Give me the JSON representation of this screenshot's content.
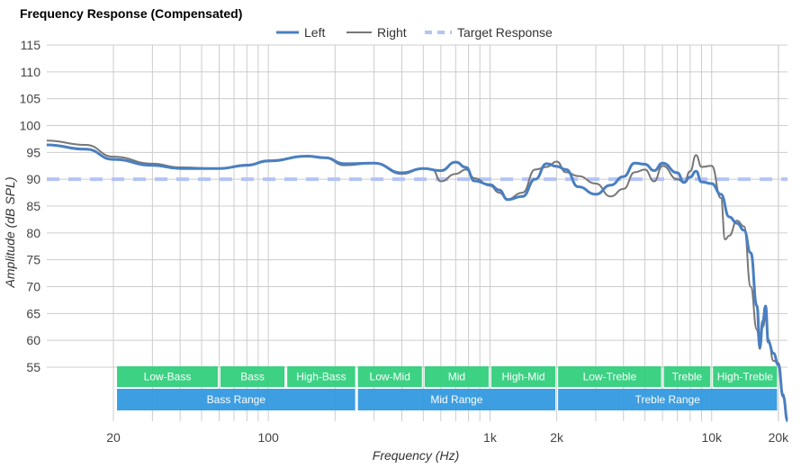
{
  "chart_data": {
    "type": "line",
    "title": "Frequency Response (Compensated)",
    "xlabel": "Frequency (Hz)",
    "ylabel": "Amplitude (dB SPL)",
    "xscale": "log",
    "xlim": [
      10,
      22000
    ],
    "ylim": [
      48,
      115
    ],
    "yticks": [
      55,
      60,
      65,
      70,
      75,
      80,
      85,
      90,
      95,
      100,
      105,
      110,
      115
    ],
    "xticks": [
      {
        "v": 20,
        "label": "20"
      },
      {
        "v": 100,
        "label": "100"
      },
      {
        "v": 1000,
        "label": "1k"
      },
      {
        "v": 2000,
        "label": "2k"
      },
      {
        "v": 10000,
        "label": "10k"
      },
      {
        "v": 20000,
        "label": "20k"
      }
    ],
    "grid": true,
    "legend_position": "top-center",
    "legend": [
      "Left",
      "Right",
      "Target Response"
    ],
    "colors": {
      "left": "#4a7fc1",
      "right": "#777777",
      "target": "#b4c4f6",
      "band_green": "#33cf7d",
      "band_blue": "#3399e0"
    },
    "target": 90,
    "series": [
      {
        "name": "Left",
        "points": [
          [
            10,
            96.4
          ],
          [
            15,
            95.6
          ],
          [
            20,
            93.7
          ],
          [
            30,
            92.6
          ],
          [
            40,
            92
          ],
          [
            60,
            92
          ],
          [
            80,
            92.6
          ],
          [
            100,
            93.4
          ],
          [
            150,
            94.3
          ],
          [
            180,
            94
          ],
          [
            220,
            92.9
          ],
          [
            300,
            93
          ],
          [
            400,
            91.2
          ],
          [
            500,
            92
          ],
          [
            600,
            91.6
          ],
          [
            700,
            93.2
          ],
          [
            780,
            92.2
          ],
          [
            850,
            89.7
          ],
          [
            1000,
            89
          ],
          [
            1100,
            88
          ],
          [
            1200,
            86.2
          ],
          [
            1400,
            86.8
          ],
          [
            1600,
            90
          ],
          [
            1800,
            92.9
          ],
          [
            2000,
            92.4
          ],
          [
            2200,
            91.8
          ],
          [
            2500,
            88.6
          ],
          [
            3000,
            87.2
          ],
          [
            3500,
            88.9
          ],
          [
            4000,
            90.5
          ],
          [
            4500,
            93
          ],
          [
            5000,
            92.8
          ],
          [
            5500,
            91.6
          ],
          [
            6000,
            93
          ],
          [
            7000,
            91.2
          ],
          [
            7500,
            89.4
          ],
          [
            8000,
            90.4
          ],
          [
            8500,
            91.5
          ],
          [
            9000,
            89.5
          ],
          [
            10000,
            89.2
          ],
          [
            11000,
            87.2
          ],
          [
            12000,
            83
          ],
          [
            13000,
            81.8
          ],
          [
            14000,
            80.5
          ],
          [
            15000,
            76.3
          ],
          [
            16000,
            66.4
          ],
          [
            16500,
            58.8
          ],
          [
            17000,
            63.5
          ],
          [
            17500,
            66.4
          ],
          [
            18000,
            59.7
          ],
          [
            19000,
            57.6
          ],
          [
            20000,
            55.4
          ],
          [
            21000,
            49.6
          ],
          [
            22000,
            45
          ]
        ]
      },
      {
        "name": "Right",
        "points": [
          [
            10,
            97.2
          ],
          [
            15,
            96.4
          ],
          [
            20,
            94.2
          ],
          [
            30,
            92.9
          ],
          [
            40,
            92.2
          ],
          [
            60,
            92
          ],
          [
            80,
            92.7
          ],
          [
            100,
            93.5
          ],
          [
            150,
            94.3
          ],
          [
            180,
            94
          ],
          [
            220,
            92.6
          ],
          [
            300,
            93
          ],
          [
            400,
            91
          ],
          [
            500,
            92
          ],
          [
            550,
            91.8
          ],
          [
            600,
            89.6
          ],
          [
            700,
            91
          ],
          [
            780,
            91.8
          ],
          [
            850,
            90.2
          ],
          [
            1000,
            88.8
          ],
          [
            1100,
            87.5
          ],
          [
            1200,
            86.3
          ],
          [
            1400,
            87.5
          ],
          [
            1600,
            91.8
          ],
          [
            1800,
            92.3
          ],
          [
            2000,
            93.3
          ],
          [
            2200,
            91.3
          ],
          [
            2500,
            90.6
          ],
          [
            3000,
            89.2
          ],
          [
            3500,
            86.8
          ],
          [
            4000,
            88.2
          ],
          [
            4500,
            91.3
          ],
          [
            5000,
            91.8
          ],
          [
            5500,
            89.6
          ],
          [
            6000,
            92.5
          ],
          [
            7000,
            90
          ],
          [
            7500,
            89.4
          ],
          [
            8000,
            91.5
          ],
          [
            8500,
            94.5
          ],
          [
            9000,
            92.3
          ],
          [
            10000,
            92.5
          ],
          [
            11000,
            86.5
          ],
          [
            11500,
            78.8
          ],
          [
            12000,
            79.5
          ],
          [
            13000,
            82.3
          ],
          [
            14000,
            81.2
          ],
          [
            15000,
            70
          ],
          [
            16000,
            62
          ],
          [
            16500,
            58.4
          ],
          [
            17000,
            62.5
          ],
          [
            17500,
            64.2
          ],
          [
            18000,
            60.2
          ],
          [
            19000,
            56.2
          ],
          [
            20000,
            55.8
          ],
          [
            21000,
            50
          ],
          [
            22000,
            45
          ]
        ]
      }
    ],
    "bands": [
      {
        "row": 1,
        "label": "Low-Bass",
        "from": 20,
        "to": 60
      },
      {
        "row": 1,
        "label": "Bass",
        "from": 60,
        "to": 120
      },
      {
        "row": 1,
        "label": "High-Bass",
        "from": 120,
        "to": 250
      },
      {
        "row": 1,
        "label": "Low-Mid",
        "from": 250,
        "to": 500
      },
      {
        "row": 1,
        "label": "Mid",
        "from": 500,
        "to": 1000
      },
      {
        "row": 1,
        "label": "High-Mid",
        "from": 1000,
        "to": 2000
      },
      {
        "row": 1,
        "label": "Low-Treble",
        "from": 2000,
        "to": 6000
      },
      {
        "row": 1,
        "label": "Treble",
        "from": 6000,
        "to": 10000
      },
      {
        "row": 1,
        "label": "High-Treble",
        "from": 10000,
        "to": 20000
      },
      {
        "row": 2,
        "label": "Bass Range",
        "from": 20,
        "to": 250
      },
      {
        "row": 2,
        "label": "Mid Range",
        "from": 250,
        "to": 2000
      },
      {
        "row": 2,
        "label": "Treble Range",
        "from": 2000,
        "to": 20000
      }
    ]
  }
}
